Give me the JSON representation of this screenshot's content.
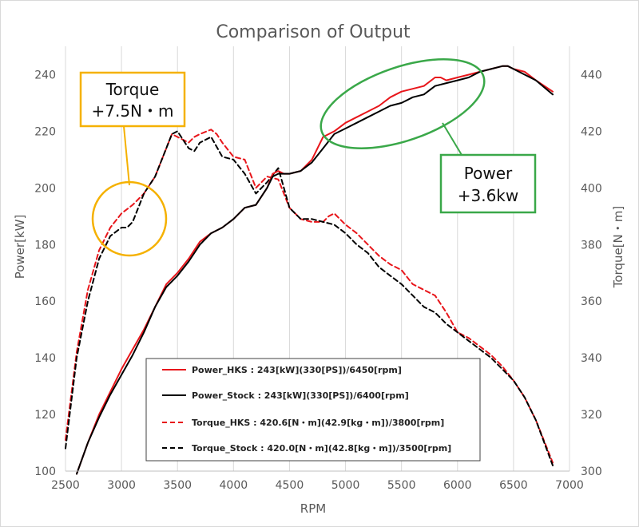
{
  "chart_data": {
    "type": "line",
    "title": "Comparison of Output",
    "xlabel": "RPM",
    "ylabel": "Power[kW]",
    "y2label": "Torque[N・m]",
    "xlim": [
      2500,
      7000
    ],
    "ylim": [
      100,
      250
    ],
    "y2lim": [
      300,
      450
    ],
    "x_ticks": [
      2500,
      3000,
      3500,
      4000,
      4500,
      5000,
      5500,
      6000,
      6500,
      7000
    ],
    "y_ticks": [
      100,
      120,
      140,
      160,
      180,
      200,
      220,
      240
    ],
    "y2_ticks": [
      300,
      320,
      340,
      360,
      380,
      400,
      420,
      440
    ],
    "grid": "vertical",
    "legend_position": "bottom-center",
    "series": [
      {
        "name": "Power_HKS : 243[kW](330[PS])/6450[rpm]",
        "axis": "left",
        "color": "#e8161b",
        "dash": "solid",
        "x": [
          2600,
          2700,
          2800,
          2900,
          3000,
          3100,
          3200,
          3300,
          3400,
          3500,
          3600,
          3700,
          3800,
          3900,
          4000,
          4100,
          4200,
          4300,
          4350,
          4400,
          4450,
          4500,
          4600,
          4700,
          4800,
          4900,
          5000,
          5100,
          5200,
          5300,
          5400,
          5500,
          5600,
          5700,
          5800,
          5850,
          5900,
          6000,
          6100,
          6200,
          6300,
          6400,
          6450,
          6500,
          6600,
          6700,
          6850
        ],
        "y": [
          99,
          110,
          120,
          128,
          136,
          143,
          150,
          158,
          166,
          170,
          175,
          181,
          184,
          186,
          189,
          193,
          194,
          200,
          205,
          206,
          205,
          205,
          206,
          210,
          218,
          220,
          223,
          225,
          227,
          229,
          232,
          234,
          235,
          236,
          239,
          239,
          238,
          239,
          240,
          241,
          242,
          243,
          243,
          242,
          241,
          238,
          234
        ]
      },
      {
        "name": "Power_Stock : 243[kW](330[PS])/6400[rpm]",
        "axis": "left",
        "color": "#000000",
        "dash": "solid",
        "x": [
          2600,
          2700,
          2800,
          2900,
          3000,
          3100,
          3200,
          3300,
          3400,
          3500,
          3600,
          3700,
          3800,
          3900,
          4000,
          4100,
          4200,
          4300,
          4350,
          4400,
          4450,
          4500,
          4600,
          4700,
          4800,
          4900,
          5000,
          5100,
          5200,
          5300,
          5400,
          5500,
          5600,
          5700,
          5800,
          5900,
          6000,
          6100,
          6200,
          6300,
          6400,
          6450,
          6500,
          6600,
          6700,
          6850
        ],
        "y": [
          99,
          110,
          119,
          127,
          134,
          141,
          149,
          158,
          165,
          169,
          174,
          180,
          184,
          186,
          189,
          193,
          194,
          200,
          204,
          205,
          205,
          205,
          206,
          209,
          214,
          219,
          221,
          223,
          225,
          227,
          229,
          230,
          232,
          233,
          236,
          237,
          238,
          239,
          241,
          242,
          243,
          243,
          242,
          240,
          238,
          233
        ]
      },
      {
        "name": "Torque_HKS : 420.6[N・m](42.9[kg・m])/3800[rpm]",
        "axis": "right",
        "color": "#e8161b",
        "dash": "dashed",
        "x": [
          2500,
          2600,
          2700,
          2800,
          2900,
          3000,
          3100,
          3200,
          3300,
          3400,
          3450,
          3500,
          3600,
          3650,
          3700,
          3800,
          3850,
          3900,
          4000,
          4100,
          4200,
          4300,
          4400,
          4450,
          4500,
          4600,
          4700,
          4800,
          4850,
          4900,
          5000,
          5100,
          5200,
          5300,
          5400,
          5500,
          5600,
          5700,
          5800,
          5900,
          6000,
          6100,
          6200,
          6300,
          6400,
          6500,
          6600,
          6700,
          6850
        ],
        "y": [
          311,
          342,
          364,
          378,
          386,
          391,
          394,
          398,
          404,
          414,
          419,
          418,
          416,
          418,
          419,
          420.6,
          419,
          416,
          411,
          410,
          400,
          404,
          403,
          398,
          393,
          389,
          388,
          388,
          390,
          391,
          387,
          384,
          380,
          376,
          373,
          371,
          366,
          364,
          362,
          356,
          349,
          347,
          344,
          341,
          337,
          332,
          326,
          318,
          303
        ]
      },
      {
        "name": "Torque_Stock : 420.0[N・m](42.8[kg・m])/3500[rpm]",
        "axis": "right",
        "color": "#000000",
        "dash": "dashed",
        "x": [
          2500,
          2600,
          2700,
          2800,
          2900,
          3000,
          3050,
          3100,
          3200,
          3300,
          3400,
          3450,
          3500,
          3600,
          3650,
          3700,
          3800,
          3900,
          4000,
          4100,
          4200,
          4300,
          4400,
          4450,
          4500,
          4600,
          4700,
          4800,
          4900,
          5000,
          5100,
          5200,
          5300,
          5400,
          5500,
          5600,
          5700,
          5800,
          5900,
          6000,
          6100,
          6200,
          6300,
          6400,
          6500,
          6600,
          6700,
          6850
        ],
        "y": [
          308,
          340,
          360,
          375,
          383,
          386,
          386,
          388,
          398,
          404,
          414,
          419,
          420,
          414,
          413,
          416,
          418,
          411,
          410,
          405,
          398,
          402,
          407,
          400,
          393,
          389,
          389,
          388,
          387,
          384,
          380,
          377,
          372,
          369,
          366,
          362,
          358,
          356,
          352,
          349,
          346,
          343,
          340,
          336,
          332,
          326,
          318,
          302
        ]
      }
    ],
    "annotations": [
      {
        "line1": "Torque",
        "line2": "+7.5N・m",
        "color": "#f5b100"
      },
      {
        "line1": "Power",
        "line2": "+3.6kw",
        "color": "#3aa849"
      }
    ]
  }
}
